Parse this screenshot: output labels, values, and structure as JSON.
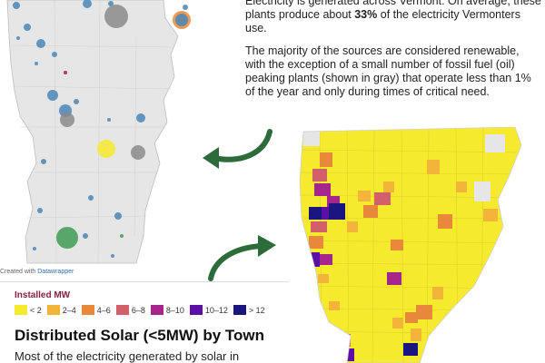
{
  "intro": {
    "p1_before": "Electricity is generated across Vermont. On average, these plants produce about ",
    "p1_highlight": "33%",
    "p1_after": " of the electricity Vermonters use.",
    "p2": "The majority of the sources are considered renewable, with the exception of a small number of fossil fuel (oil) peaking plants (shown in gray) that operate less than 1% of the year and only during times of critical need."
  },
  "credit": {
    "prefix": "Created with ",
    "brand": "Datawrapper"
  },
  "legend": {
    "title": "Installed MW",
    "items": [
      {
        "label": "< 2",
        "color": "#f5ea2e"
      },
      {
        "label": "2–4",
        "color": "#f2b53a"
      },
      {
        "label": "4–6",
        "color": "#e8883a"
      },
      {
        "label": "6–8",
        "color": "#d2606a"
      },
      {
        "label": "8–10",
        "color": "#a4258c"
      },
      {
        "label": "10–12",
        "color": "#5b0fa6"
      },
      {
        "label": "> 12",
        "color": "#1b1580"
      }
    ]
  },
  "section": {
    "title": "Distributed Solar (<5MW) by Town",
    "text": "Most of the electricity generated by solar in"
  },
  "colors": {
    "arrow": "#2e6b3a",
    "map_gray": "#e6e6e6",
    "bubble_blue": "#4a86b5",
    "bubble_green": "#3e9a52",
    "bubble_gray": "#8a8a8a",
    "bubble_yellow": "#f5ea2e"
  }
}
